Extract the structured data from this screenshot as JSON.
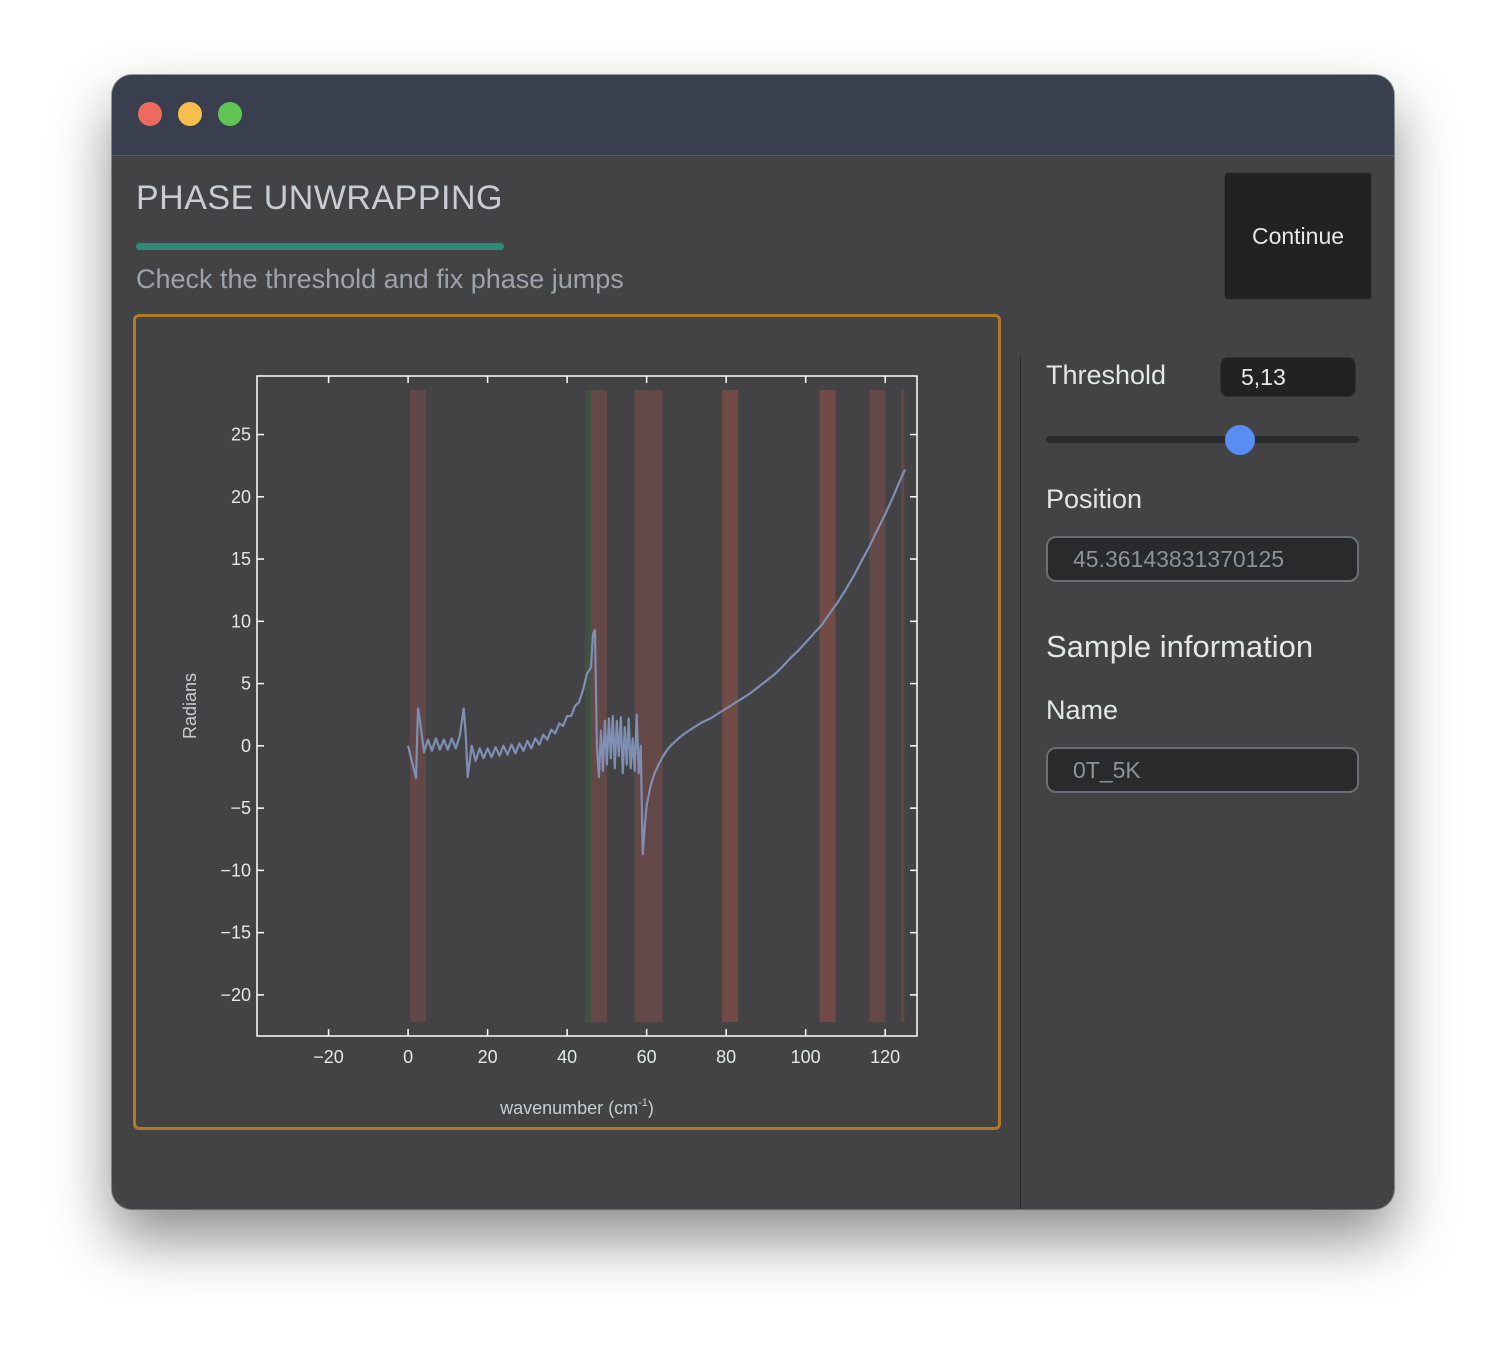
{
  "window": {
    "traffic_lights": {
      "close": "#ed6a5e",
      "minimize": "#f5be4f",
      "zoom": "#61c454"
    }
  },
  "header": {
    "title": "PHASE UNWRAPPING",
    "subtitle": "Check the threshold and fix phase jumps",
    "accent_color": "#2f8a7a",
    "continue_label": "Continue"
  },
  "sidebar": {
    "threshold_label": "Threshold",
    "threshold_value": "5,13",
    "slider_fraction": 0.62,
    "slider_color": "#5b8df7",
    "position_label": "Position",
    "position_value": "45.36143831370125",
    "sample_heading": "Sample information",
    "name_label": "Name",
    "name_value": "0T_5K"
  },
  "chart_data": {
    "type": "line",
    "xlabel": "wavenumber (cm",
    "xlabel_superscript": "-1",
    "xlabel_suffix": ")",
    "ylabel": "Radians",
    "xlim": [
      -38,
      128
    ],
    "ylim": [
      -23.3,
      29.7
    ],
    "x_ticks": [
      -20,
      0,
      20,
      40,
      60,
      80,
      100,
      120
    ],
    "x_tick_labels": [
      "−20",
      "0",
      "20",
      "40",
      "60",
      "80",
      "100",
      "120"
    ],
    "y_ticks": [
      -20,
      -15,
      -10,
      -5,
      0,
      5,
      10,
      15,
      20,
      25
    ],
    "y_tick_labels": [
      "−20",
      "−15",
      "−10",
      "−5",
      "0",
      "5",
      "10",
      "15",
      "20",
      "25"
    ],
    "line_color": "#7f8fb3",
    "highlight_bands": [
      {
        "x0": 0.5,
        "x1": 4.5,
        "color": "#6a4848",
        "opacity": 0.8
      },
      {
        "x0": 44.5,
        "x1": 46.0,
        "color": "#3f5a40",
        "opacity": 0.7
      },
      {
        "x0": 46.0,
        "x1": 50.0,
        "color": "#6a4848",
        "opacity": 0.85
      },
      {
        "x0": 57.0,
        "x1": 60.5,
        "color": "#6a4848",
        "opacity": 0.85
      },
      {
        "x0": 60.5,
        "x1": 64.0,
        "color": "#6a4848",
        "opacity": 0.85
      },
      {
        "x0": 79.0,
        "x1": 83.0,
        "color": "#7a4c48",
        "opacity": 0.85
      },
      {
        "x0": 103.5,
        "x1": 107.5,
        "color": "#7a4c48",
        "opacity": 0.85
      },
      {
        "x0": 116.0,
        "x1": 120.0,
        "color": "#6a4848",
        "opacity": 0.85
      },
      {
        "x0": 124.0,
        "x1": 124.8,
        "color": "#6a4848",
        "opacity": 0.85
      }
    ],
    "series": [
      {
        "x": [
          0.0,
          2.0,
          2.5,
          3.0,
          4.0,
          5.0,
          6.0,
          7.0,
          8.0,
          9.0,
          10.0,
          11.0,
          12.0,
          13.0,
          14.0,
          14.5,
          15.0,
          16.0,
          17.0,
          18.0,
          19.0,
          20.0,
          21.0,
          22.0,
          23.0,
          24.0,
          25.0,
          26.0,
          27.0,
          28.0,
          29.0,
          30.0,
          31.0,
          32.0,
          33.0,
          34.0,
          35.0,
          36.0,
          37.0,
          38.0,
          39.0,
          40.0,
          41.0,
          42.0,
          43.0,
          44.0,
          45.0,
          46.0,
          46.5,
          47.0,
          47.5,
          48.0,
          48.5,
          49.0,
          49.5,
          50.0,
          50.5,
          51.0,
          51.5,
          52.0,
          52.5,
          53.0,
          53.5,
          54.0,
          54.5,
          55.0,
          55.5,
          56.0,
          56.5,
          57.0,
          57.5,
          58.0,
          58.5,
          59.0,
          59.5,
          60.0,
          61.0,
          62.0,
          63.0,
          64.0,
          65.0,
          66.0,
          68.0,
          70.0,
          72.0,
          74.0,
          76.0,
          78.0,
          80.0,
          82.0,
          84.0,
          86.0,
          88.0,
          90.0,
          92.0,
          94.0,
          96.0,
          98.0,
          100.0,
          102.0,
          104.0,
          106.0,
          108.0,
          110.0,
          112.0,
          114.0,
          116.0,
          118.0,
          120.0,
          122.0,
          124.0,
          125.0
        ],
        "y": [
          0.0,
          -2.6,
          3.0,
          2.0,
          -0.5,
          0.5,
          -0.4,
          0.6,
          -0.3,
          0.5,
          -0.3,
          0.6,
          -0.2,
          0.8,
          3.0,
          1.0,
          -2.5,
          0.0,
          -1.2,
          -0.2,
          -1.0,
          -0.2,
          -0.9,
          -0.1,
          -0.8,
          0.0,
          -0.7,
          0.1,
          -0.6,
          0.2,
          -0.4,
          0.4,
          -0.2,
          0.6,
          0.1,
          0.9,
          0.5,
          1.3,
          1.0,
          1.8,
          1.6,
          2.4,
          2.4,
          3.2,
          3.5,
          4.5,
          5.8,
          6.3,
          9.0,
          9.3,
          0.0,
          -2.5,
          1.2,
          -2.0,
          2.0,
          -1.5,
          2.2,
          -1.0,
          2.4,
          -1.8,
          2.0,
          -0.8,
          2.3,
          -2.2,
          1.5,
          -1.5,
          2.2,
          -1.8,
          0.6,
          -2.0,
          2.5,
          -2.2,
          0.0,
          -8.7,
          -6.5,
          -4.8,
          -3.2,
          -2.2,
          -1.5,
          -0.9,
          -0.4,
          0.0,
          0.6,
          1.1,
          1.5,
          1.9,
          2.2,
          2.6,
          3.0,
          3.4,
          3.8,
          4.2,
          4.7,
          5.2,
          5.7,
          6.3,
          7.0,
          7.6,
          8.3,
          9.0,
          9.7,
          10.6,
          11.5,
          12.5,
          13.6,
          14.8,
          16.0,
          17.3,
          18.6,
          20.0,
          21.5,
          22.2
        ]
      }
    ]
  }
}
